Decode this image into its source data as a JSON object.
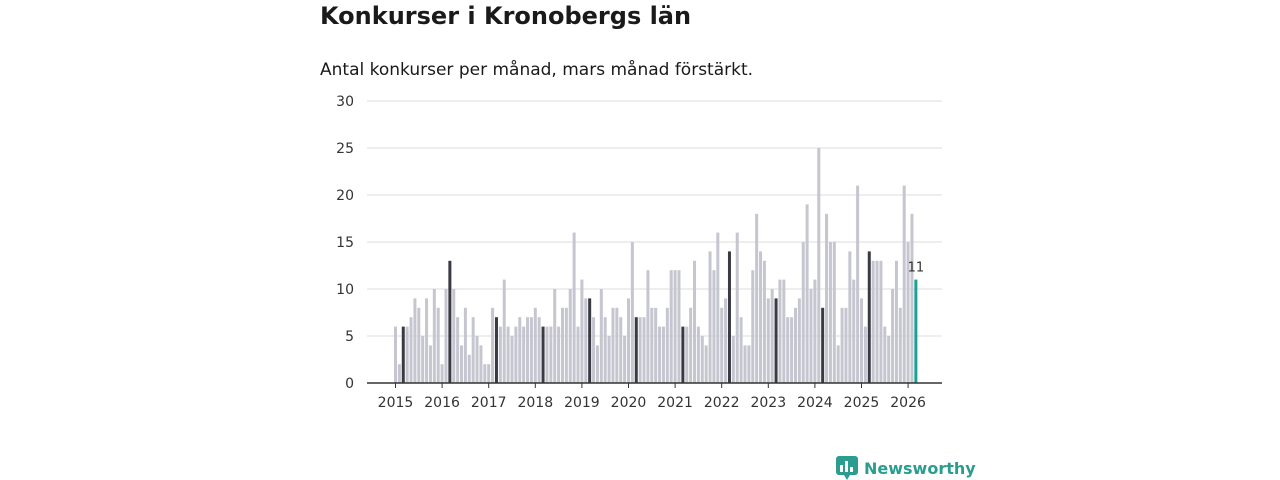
{
  "title": "Konkurser i Kronobergs län",
  "subtitle": "Antal konkurser per månad, mars månad förstärkt.",
  "brand": "Newsworthy",
  "colors": {
    "bar": "#c6c6d0",
    "highlight": "#3a3a44",
    "latest": "#1aa196",
    "axis": "#333333",
    "grid": "#dddddd",
    "brand": "#2a9d8f"
  },
  "chart_data": {
    "type": "bar",
    "title": "Konkurser i Kronobergs län",
    "xlabel": "",
    "ylabel": "",
    "ylim": [
      0,
      30
    ],
    "yticks": [
      "0",
      "5",
      "10",
      "15",
      "20",
      "25",
      "30"
    ],
    "xticks": [
      "2015",
      "2016",
      "2017",
      "2018",
      "2019",
      "2020",
      "2021",
      "2022",
      "2023",
      "2024",
      "2025",
      "2026"
    ],
    "start": "2015-01",
    "highlight_month": "mars",
    "latest_label": "11",
    "values": [
      6,
      2,
      6,
      6,
      7,
      9,
      8,
      5,
      9,
      4,
      10,
      8,
      2,
      10,
      13,
      10,
      7,
      4,
      8,
      3,
      7,
      5,
      4,
      2,
      2,
      8,
      7,
      6,
      11,
      6,
      5,
      6,
      7,
      6,
      7,
      7,
      8,
      7,
      6,
      6,
      6,
      10,
      6,
      8,
      8,
      10,
      16,
      6,
      11,
      9,
      9,
      7,
      4,
      10,
      7,
      5,
      8,
      8,
      7,
      5,
      9,
      15,
      7,
      7,
      7,
      12,
      8,
      8,
      6,
      6,
      8,
      12,
      12,
      12,
      6,
      6,
      8,
      13,
      6,
      5,
      4,
      14,
      12,
      16,
      8,
      9,
      14,
      5,
      16,
      7,
      4,
      4,
      12,
      18,
      14,
      13,
      9,
      10,
      9,
      11,
      11,
      7,
      7,
      8,
      9,
      15,
      19,
      10,
      11,
      25,
      8,
      18,
      15,
      15,
      4,
      8,
      8,
      14,
      11,
      21,
      9,
      6,
      14,
      13,
      13,
      13,
      6,
      5,
      10,
      13,
      8,
      21,
      15,
      18,
      11
    ]
  }
}
